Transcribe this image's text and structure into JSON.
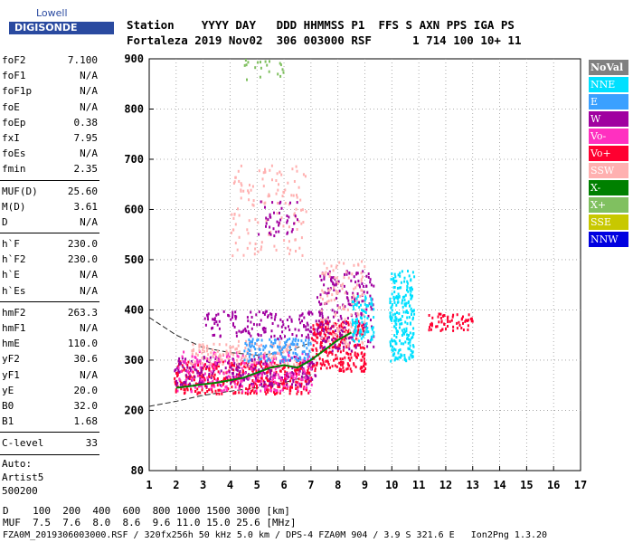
{
  "logo": {
    "top": "Lowell",
    "main": "DIGISONDE"
  },
  "header": {
    "row1": "Station    YYYY DAY   DDD HHMMSS P1  FFS S AXN PPS IGA PS",
    "row2": "Fortaleza 2019 Nov02  306 003000 RSF      1 714 100 10+ 11"
  },
  "params": {
    "group1": [
      {
        "label": "foF2",
        "value": "7.100"
      },
      {
        "label": "foF1",
        "value": "N/A"
      },
      {
        "label": "foF1p",
        "value": "N/A"
      },
      {
        "label": "foE",
        "value": "N/A"
      },
      {
        "label": "foEp",
        "value": "0.38"
      },
      {
        "label": "fxI",
        "value": "7.95"
      },
      {
        "label": "foEs",
        "value": "N/A"
      },
      {
        "label": "fmin",
        "value": "2.35"
      }
    ],
    "group2": [
      {
        "label": "MUF(D)",
        "value": "25.60"
      },
      {
        "label": "M(D)",
        "value": "3.61"
      },
      {
        "label": "D",
        "value": "N/A"
      }
    ],
    "group3": [
      {
        "label": "h`F",
        "value": "230.0"
      },
      {
        "label": "h`F2",
        "value": "230.0"
      },
      {
        "label": "h`E",
        "value": "N/A"
      },
      {
        "label": "h`Es",
        "value": "N/A"
      }
    ],
    "group4": [
      {
        "label": "hmF2",
        "value": "263.3"
      },
      {
        "label": "hmF1",
        "value": "N/A"
      },
      {
        "label": "hmE",
        "value": "110.0"
      },
      {
        "label": "yF2",
        "value": "30.6"
      },
      {
        "label": "yF1",
        "value": "N/A"
      },
      {
        "label": "yE",
        "value": "20.0"
      },
      {
        "label": "B0",
        "value": "32.0"
      },
      {
        "label": "B1",
        "value": "1.68"
      }
    ],
    "group5": [
      {
        "label": "C-level",
        "value": "33"
      }
    ],
    "auto": [
      "Auto:",
      "Artist5",
      "500200"
    ]
  },
  "legend": [
    {
      "label": "NoVal",
      "color": "#808080"
    },
    {
      "label": "NNE",
      "color": "#00e0ff"
    },
    {
      "label": "E",
      "color": "#3aa0ff"
    },
    {
      "label": "W",
      "color": "#a000a0"
    },
    {
      "label": "Vo-",
      "color": "#ff30c0"
    },
    {
      "label": "Vo+",
      "color": "#ff0030"
    },
    {
      "label": "SSW",
      "color": "#ffb0b0"
    },
    {
      "label": "X-",
      "color": "#008000"
    },
    {
      "label": "X+",
      "color": "#80c060"
    },
    {
      "label": "SSE",
      "color": "#c8c800"
    },
    {
      "label": "NNW",
      "color": "#0000e0"
    }
  ],
  "footer": {
    "d_row": "D    100  200  400  600  800 1000 1500 3000 [km]",
    "muf_row": "MUF  7.5  7.6  8.0  8.6  9.6 11.0 15.0 25.6 [MHz]",
    "info_row": "FZA0M_2019306003000.RSF / 320fx256h 50 kHz 5.0 km / DPS-4 FZA0M 904 / 3.9 S 321.6 E   Ion2Png 1.3.20"
  },
  "chart_data": {
    "type": "scatter",
    "xlim": [
      1,
      17
    ],
    "ylim": [
      80,
      900
    ],
    "x_ticks": [
      1,
      2,
      3,
      4,
      5,
      6,
      7,
      8,
      9,
      10,
      11,
      12,
      13,
      14,
      15,
      16,
      17
    ],
    "y_ticks": [
      80,
      200,
      300,
      400,
      500,
      600,
      700,
      800,
      900
    ],
    "grid": true,
    "clusters": [
      {
        "color": "#ff0030",
        "x": [
          1.9,
          7.0
        ],
        "y": [
          235,
          300
        ],
        "n": 420
      },
      {
        "color": "#a000a0",
        "x": [
          1.9,
          7.2
        ],
        "y": [
          250,
          310
        ],
        "n": 260
      },
      {
        "color": "#ff30c0",
        "x": [
          2.0,
          7.0
        ],
        "y": [
          240,
          320
        ],
        "n": 220
      },
      {
        "color": "#ffb0b0",
        "x": [
          2.5,
          6.5
        ],
        "y": [
          290,
          340
        ],
        "n": 140
      },
      {
        "color": "#3aa0ff",
        "x": [
          4.5,
          7.0
        ],
        "y": [
          300,
          345
        ],
        "n": 120
      },
      {
        "color": "#a000a0",
        "x": [
          3.0,
          7.5
        ],
        "y": [
          345,
          400
        ],
        "n": 160
      },
      {
        "color": "#ff0030",
        "x": [
          7.0,
          9.0
        ],
        "y": [
          280,
          380
        ],
        "n": 260
      },
      {
        "color": "#a000a0",
        "x": [
          7.2,
          9.3
        ],
        "y": [
          320,
          480
        ],
        "n": 200
      },
      {
        "color": "#ffb0b0",
        "x": [
          7.3,
          9.0
        ],
        "y": [
          330,
          500
        ],
        "n": 120
      },
      {
        "color": "#00e0ff",
        "x": [
          8.5,
          9.3
        ],
        "y": [
          340,
          430
        ],
        "n": 80
      },
      {
        "color": "#00e0ff",
        "x": [
          9.9,
          10.8
        ],
        "y": [
          300,
          480
        ],
        "n": 220
      },
      {
        "color": "#ff0030",
        "x": [
          11.3,
          13.0
        ],
        "y": [
          360,
          395
        ],
        "n": 60
      },
      {
        "color": "#ffb0b0",
        "x": [
          4.0,
          6.8
        ],
        "y": [
          510,
          690
        ],
        "n": 130
      },
      {
        "color": "#a000a0",
        "x": [
          5.0,
          6.5
        ],
        "y": [
          550,
          620
        ],
        "n": 40
      },
      {
        "color": "#80c060",
        "x": [
          4.5,
          6.0
        ],
        "y": [
          860,
          900
        ],
        "n": 20
      }
    ],
    "o_trace": {
      "color": "#008000",
      "x": [
        2.0,
        2.5,
        3.0,
        3.5,
        4.0,
        4.5,
        5.0,
        5.5,
        6.0,
        6.5,
        7.0,
        7.5,
        8.0,
        8.5
      ],
      "y": [
        245,
        248,
        252,
        255,
        260,
        265,
        275,
        285,
        290,
        285,
        300,
        320,
        340,
        355
      ]
    },
    "model_upper": {
      "x": [
        1.0,
        2.0,
        3.0,
        4.0,
        5.0,
        6.0,
        7.0
      ],
      "y": [
        385,
        350,
        325,
        315,
        310,
        315,
        335
      ]
    },
    "model_lower": {
      "x": [
        1.0,
        2.0,
        3.0,
        4.0,
        5.0,
        6.0,
        7.0
      ],
      "y": [
        208,
        218,
        230,
        238,
        245,
        255,
        270
      ]
    }
  }
}
